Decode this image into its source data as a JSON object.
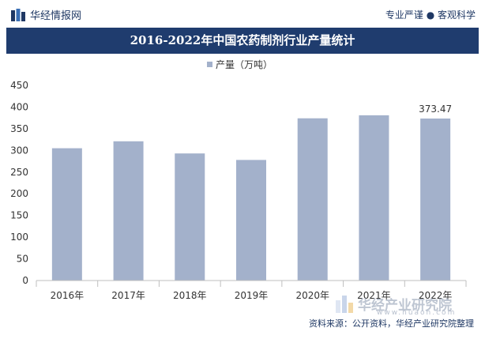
{
  "header": {
    "brand": "华经情报网",
    "tagline": "专业严谨 ● 客观科学",
    "title": "2016-2022年中国农药制剂行业产量统计"
  },
  "footer": {
    "source": "资料来源：公开资料，华经产业研究院整理"
  },
  "watermark": {
    "text": "华经产业研究院",
    "url": "www.huaon.com"
  },
  "colors": {
    "bar": "#a3b1cb",
    "title_bg": "#1f3c6e",
    "brand_text": "#1f3864"
  },
  "chart_data": {
    "type": "bar",
    "title": "2016-2022年中国农药制剂行业产量统计",
    "legend": {
      "position": "top-center"
    },
    "categories": [
      "2016年",
      "2017年",
      "2018年",
      "2019年",
      "2020年",
      "2021年",
      "2022年"
    ],
    "series": [
      {
        "name": "产量（万吨）",
        "values": [
          305,
          321,
          293,
          278,
          374,
          381,
          373.47
        ]
      }
    ],
    "data_labels": [
      {
        "category": "2022年",
        "text": "373.47"
      }
    ],
    "ylim": [
      0,
      450
    ],
    "yticks": [
      0,
      50,
      100,
      150,
      200,
      250,
      300,
      350,
      400,
      450
    ],
    "grid": false
  }
}
